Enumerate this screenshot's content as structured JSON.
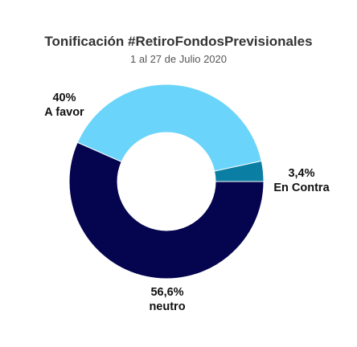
{
  "chart_data": {
    "type": "pie",
    "title": "Tonificación #RetiroFondosPrevisionales",
    "subtitle": "1 al 27 de Julio 2020",
    "slices": [
      {
        "name": "En Contra",
        "value": 3.4,
        "value_label": "3,4%",
        "color": "#0a7fa3"
      },
      {
        "name": "neutro",
        "value": 56.6,
        "value_label": "56,6%",
        "color": "#04044f"
      },
      {
        "name": "A favor",
        "value": 40,
        "value_label": "40%",
        "color": "#6ad4fa"
      }
    ],
    "donut": true,
    "legend": "none"
  }
}
